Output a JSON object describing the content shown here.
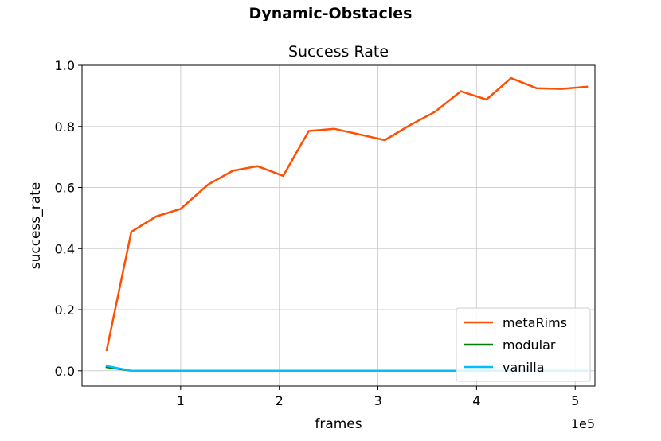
{
  "suptitle": "Dynamic-Obstacles",
  "chart_data": {
    "type": "line",
    "title": "Success Rate",
    "xlabel": "frames",
    "ylabel": "success_rate",
    "x_offset_label": "1e5",
    "xlim": [
      0,
      5.2
    ],
    "ylim": [
      -0.05,
      1.0
    ],
    "xticks": [
      1,
      2,
      3,
      4,
      5
    ],
    "yticks": [
      0.0,
      0.2,
      0.4,
      0.6,
      0.8,
      1.0
    ],
    "xtick_labels": [
      "1",
      "2",
      "3",
      "4",
      "5"
    ],
    "ytick_labels": [
      "0.0",
      "0.2",
      "0.4",
      "0.6",
      "0.8",
      "1.0"
    ],
    "grid": true,
    "legend_position": "lower-right",
    "series": [
      {
        "name": "metaRims",
        "color": "#ff4f00",
        "x": [
          0.25,
          0.5,
          0.75,
          1.0,
          1.28,
          1.53,
          1.78,
          2.04,
          2.3,
          2.56,
          3.07,
          3.33,
          3.58,
          3.84,
          4.1,
          4.35,
          4.61,
          4.86,
          5.12
        ],
        "y": [
          0.068,
          0.455,
          0.505,
          0.53,
          0.61,
          0.655,
          0.67,
          0.638,
          0.785,
          0.792,
          0.755,
          0.805,
          0.848,
          0.915,
          0.888,
          0.958,
          0.925,
          0.923,
          0.93
        ]
      },
      {
        "name": "modular",
        "color": "#008000",
        "x": [
          0.25,
          0.5,
          0.75,
          1.0,
          1.28,
          1.53,
          1.78,
          2.04,
          2.3,
          2.56,
          3.07,
          3.33,
          3.58,
          3.84,
          4.1,
          4.35,
          4.61,
          4.86,
          5.12
        ],
        "y": [
          0.012,
          0.0,
          0.0,
          0.0,
          0.0,
          0.0,
          0.0,
          0.0,
          0.0,
          0.0,
          0.0,
          0.0,
          0.0,
          0.0,
          0.0,
          0.0,
          0.0,
          0.0,
          0.0
        ]
      },
      {
        "name": "vanilla",
        "color": "#00bfff",
        "x": [
          0.25,
          0.5,
          0.75,
          1.0,
          1.28,
          1.53,
          1.78,
          2.04,
          2.3,
          2.56,
          3.07,
          3.33,
          3.58,
          3.84,
          4.1,
          4.35,
          4.61,
          4.86,
          5.12
        ],
        "y": [
          0.016,
          0.0,
          0.0,
          0.0,
          0.0,
          0.0,
          0.0,
          0.0,
          0.0,
          0.0,
          0.0,
          0.0,
          0.0,
          0.0,
          0.0,
          0.0,
          0.0,
          0.0,
          0.0
        ]
      }
    ]
  }
}
